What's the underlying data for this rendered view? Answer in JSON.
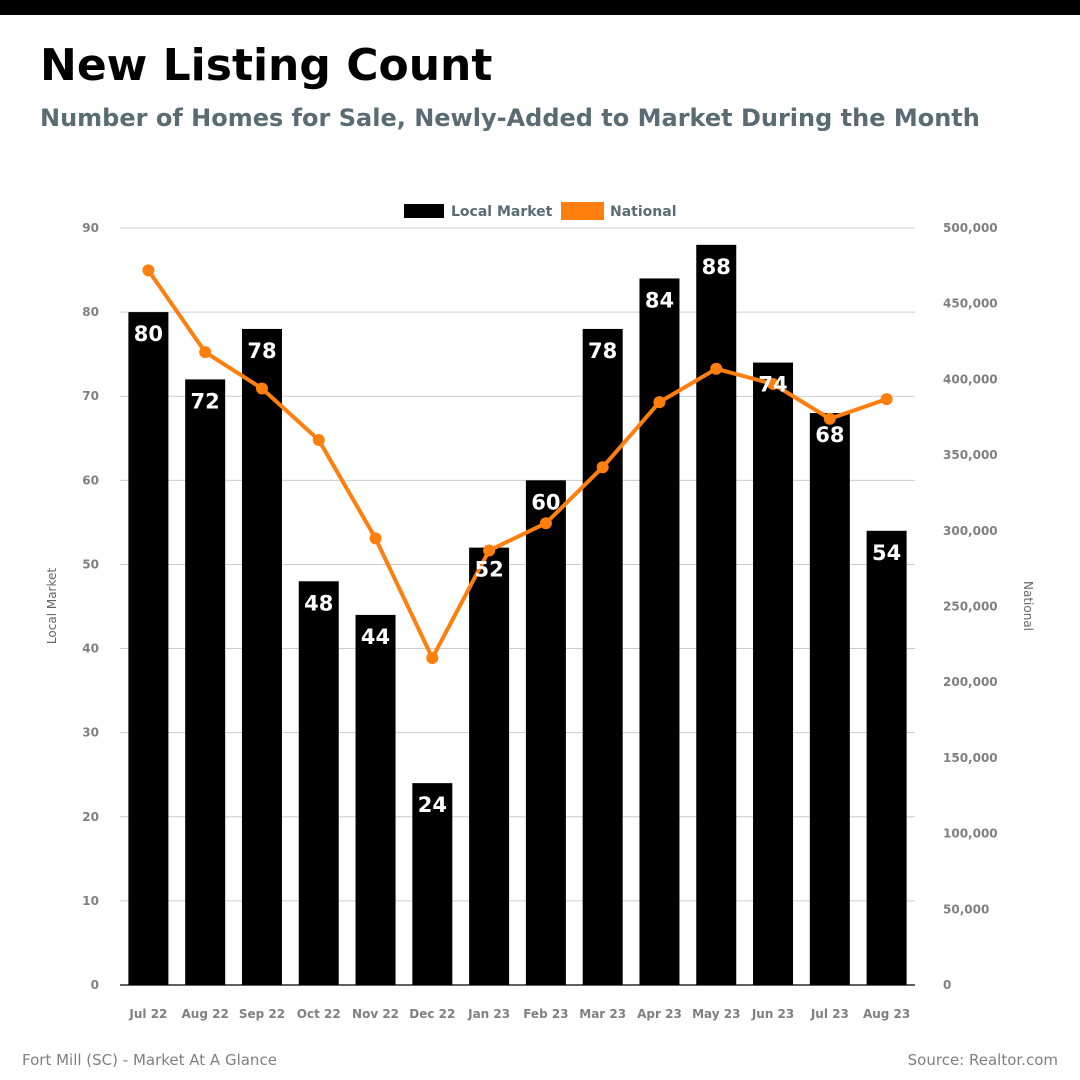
{
  "header": {
    "title": "New Listing Count",
    "subtitle": "Number of Homes for Sale, Newly-Added to Market During the Month"
  },
  "footer": {
    "left": "Fort Mill (SC) - Market At A Glance",
    "right": "Source: Realtor.com"
  },
  "colors": {
    "local": "#000000",
    "national": "#ff7f0e",
    "grid": "#cccccc",
    "tick": "#808080",
    "subtitle": "#5b6b73"
  },
  "chart_data": {
    "type": "bar",
    "title": "",
    "categories": [
      "Jul 22",
      "Aug 22",
      "Sep 22",
      "Oct 22",
      "Nov 22",
      "Dec 22",
      "Jan 23",
      "Feb 23",
      "Mar 23",
      "Apr 23",
      "May 23",
      "Jun 23",
      "Jul 23",
      "Aug 23"
    ],
    "series": [
      {
        "name": "Local Market",
        "type": "bar",
        "axis": "left",
        "values": [
          80,
          72,
          78,
          48,
          44,
          24,
          52,
          60,
          78,
          84,
          88,
          74,
          68,
          54
        ]
      },
      {
        "name": "National",
        "type": "line",
        "axis": "right",
        "values": [
          472000,
          418000,
          394000,
          360000,
          295000,
          216000,
          287000,
          305000,
          342000,
          385000,
          407000,
          397000,
          374000,
          387000
        ]
      }
    ],
    "ylabel": "Local Market",
    "y2label": "National",
    "ylim": [
      0,
      90
    ],
    "y2lim": [
      0,
      500000
    ],
    "yticks": [
      "0",
      "10",
      "20",
      "30",
      "40",
      "50",
      "60",
      "70",
      "80",
      "90"
    ],
    "y2ticks": [
      "0",
      "50,000",
      "100,000",
      "150,000",
      "200,000",
      "250,000",
      "300,000",
      "350,000",
      "400,000",
      "450,000",
      "500,000"
    ],
    "grid": true,
    "legend": "top-center",
    "data_labels": true
  }
}
